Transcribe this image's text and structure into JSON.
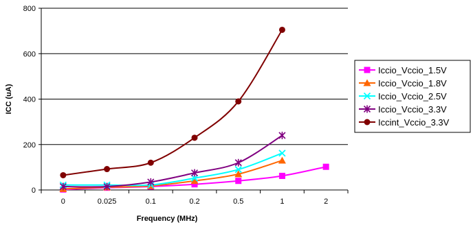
{
  "chart_data": {
    "type": "line",
    "title": "",
    "xlabel": "Frequency (MHz)",
    "ylabel": "ICC (uA)",
    "categories": [
      "0",
      "0.025",
      "0.1",
      "0.2",
      "0.5",
      "1",
      "2"
    ],
    "ylim": [
      0,
      800
    ],
    "yticks": [
      0,
      200,
      400,
      600,
      800
    ],
    "grid": "horizontal",
    "legend_position": "right",
    "series": [
      {
        "name": "Iccio_Vccio_1.5V",
        "color": "#FF00FF",
        "marker": "square",
        "values": [
          2,
          10,
          15,
          25,
          40,
          62,
          102
        ]
      },
      {
        "name": "Iccio_Vccio_1.8V",
        "color": "#FF6600",
        "marker": "triangle",
        "values": [
          5,
          12,
          18,
          40,
          70,
          130,
          null
        ]
      },
      {
        "name": "Iccio_Vccio_2.5V",
        "color": "#00FFFF",
        "marker": "x",
        "values": [
          22,
          22,
          22,
          52,
          90,
          162,
          null
        ]
      },
      {
        "name": "Iccio_Vccio_3.3V",
        "color": "#800080",
        "marker": "star",
        "values": [
          15,
          15,
          35,
          75,
          120,
          240,
          null
        ]
      },
      {
        "name": "Iccint_Vccio_3.3V",
        "color": "#800000",
        "marker": "circle",
        "values": [
          65,
          92,
          120,
          230,
          390,
          705,
          null
        ]
      }
    ]
  }
}
